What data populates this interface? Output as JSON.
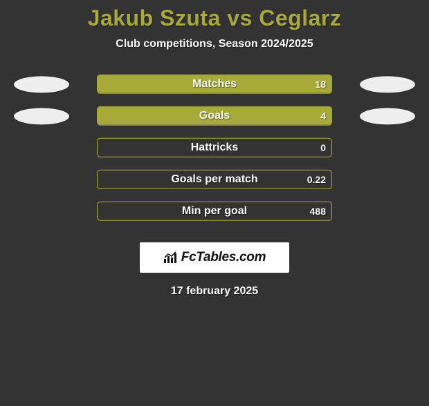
{
  "background_color": "#333333",
  "title": {
    "player1": "Jakub Szuta",
    "vs": "vs",
    "player2": "Ceglarz",
    "color": "#a7a939",
    "fontsize": 32
  },
  "subtitle": {
    "text": "Club competitions, Season 2024/2025",
    "color": "#ffffff",
    "fontsize": 16
  },
  "bars": {
    "track_border_color": "#a7a939",
    "fill_color": "#a7a939",
    "label_color": "#ffffff",
    "value_color": "#ffffff",
    "label_fontsize": 16,
    "value_fontsize": 14,
    "rows": [
      {
        "label": "Matches",
        "value": "18",
        "fill_pct": 100
      },
      {
        "label": "Goals",
        "value": "4",
        "fill_pct": 100
      },
      {
        "label": "Hattricks",
        "value": "0",
        "fill_pct": 0
      },
      {
        "label": "Goals per match",
        "value": "0.22",
        "fill_pct": 0
      },
      {
        "label": "Min per goal",
        "value": "488",
        "fill_pct": 0
      }
    ]
  },
  "blobs": {
    "color": "#eeeeee",
    "width": 80,
    "height": 24,
    "rows_with_blobs": [
      0,
      1
    ]
  },
  "brand": {
    "text": "FcTables.com"
  },
  "date": {
    "text": "17 february 2025",
    "color": "#ffffff",
    "fontsize": 16
  }
}
